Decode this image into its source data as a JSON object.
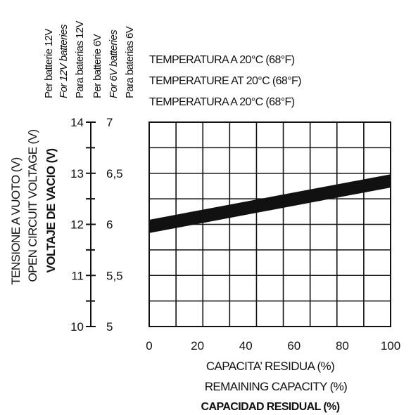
{
  "chart_data": {
    "type": "line",
    "temperature_notes": [
      "TEMPERATURA A 20°C (68°F)",
      "TEMPERATURE AT 20°C (68°F)",
      "TEMPERATURA A 20°C (68°F)"
    ],
    "battery_type_labels": [
      {
        "text": "Per batterie 12V",
        "style": "normal"
      },
      {
        "text": "For 12V batteries",
        "style": "italic"
      },
      {
        "text": "Para baterias 12V",
        "style": "normal"
      },
      {
        "text": "Per batterie 6V",
        "style": "normal"
      },
      {
        "text": "For 6V batteries",
        "style": "italic"
      },
      {
        "text": "Para baterias 6V",
        "style": "normal"
      }
    ],
    "ylabel_lines": [
      {
        "text": "TENSIONE A  VUOTO (V)",
        "style": "normal"
      },
      {
        "text": "OPEN CIRCUIT VOLTAGE (V)",
        "style": "normal"
      },
      {
        "text": "VOLTAJE DE VACIO (V)",
        "style": "bold"
      }
    ],
    "xlabel_lines": [
      {
        "text": "CAPACITA’ RESIDUA (%)",
        "style": "normal"
      },
      {
        "text": "REMAINING CAPACITY (%)",
        "style": "normal"
      },
      {
        "text": "CAPACIDAD RESIDUAL (%)",
        "style": "bold"
      }
    ],
    "x_ticks": [
      0,
      20,
      40,
      60,
      80,
      100
    ],
    "x_tick_labels": [
      "0",
      "20",
      "40",
      "60",
      "80",
      "100"
    ],
    "xlim": [
      0,
      100
    ],
    "ylim": [
      10,
      14
    ],
    "y_ticks_12v": [
      10,
      11,
      12,
      13,
      14
    ],
    "y_tick_labels_12v": [
      "10",
      "11",
      "12",
      "13",
      "14"
    ],
    "y_ticks_6v": [
      5,
      5.5,
      6,
      6.5,
      7
    ],
    "y_tick_labels_6v": [
      "5",
      "5,5",
      "6",
      "6,5",
      "7"
    ],
    "grid": true,
    "series": [
      {
        "x": [
          0,
          100
        ],
        "y": [
          11.96,
          12.85
        ],
        "band_half_width": 0.13
      }
    ],
    "colors": {
      "line": "#111111",
      "grid": "#111111",
      "background": "#ffffff"
    }
  }
}
